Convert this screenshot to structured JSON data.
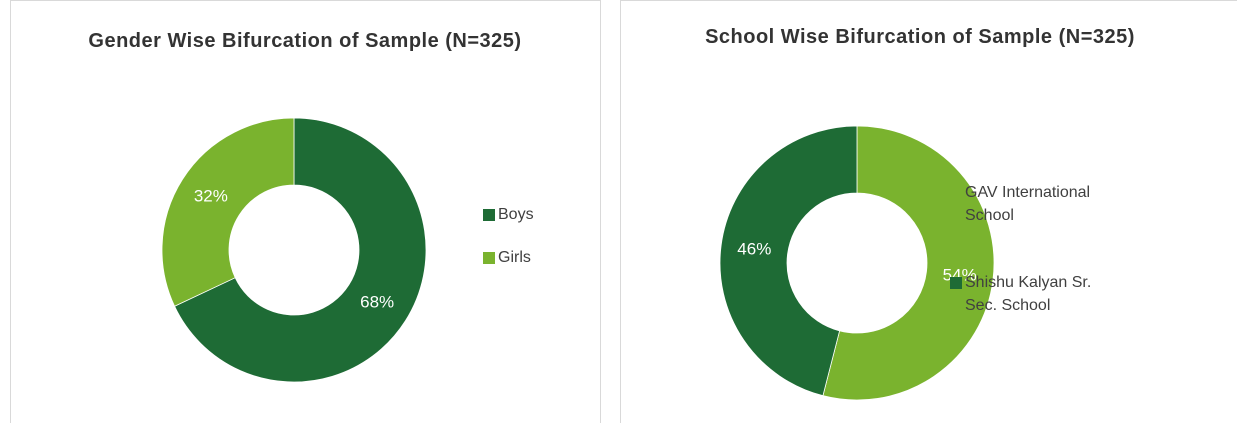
{
  "chart_data": [
    {
      "type": "donut",
      "title": "Gender Wise Bifurcation of Sample (N=325)",
      "categories": [
        "Boys",
        "Girls"
      ],
      "values": [
        68,
        32
      ],
      "value_labels": [
        "68%",
        "32%"
      ],
      "colors": [
        "#1e6b35",
        "#7ab32e"
      ],
      "legend": "right"
    },
    {
      "type": "donut",
      "title": "School Wise Bifurcation of Sample (N=325)",
      "categories": [
        "GAV International School",
        "Shishu Kalyan Sr. Sec. School"
      ],
      "values": [
        54,
        46
      ],
      "value_labels": [
        "54%",
        "46%"
      ],
      "colors": [
        "#7ab32e",
        "#1e6b35"
      ],
      "legend": "right"
    }
  ]
}
